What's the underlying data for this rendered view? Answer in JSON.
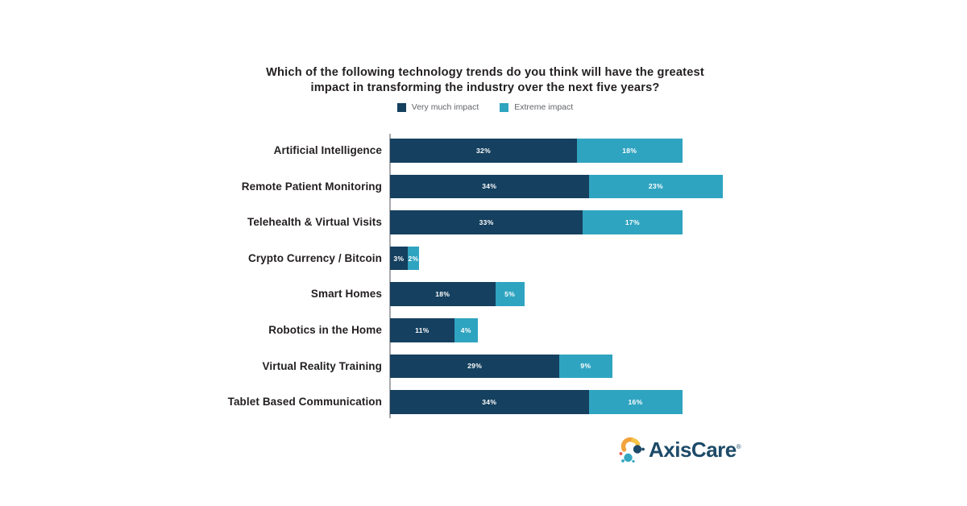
{
  "title": {
    "line1": "Which of the following technology trends do you think will have the greatest",
    "line2": "impact in transforming the industry over the next five years?"
  },
  "logo": {
    "text": "AxisCare",
    "registered_mark": "®",
    "color": "#1d4a68",
    "icon": "axiscare-dot-swirl-icon",
    "icon_colors": [
      "#f2a33c",
      "#f6c445",
      "#1d4a68",
      "#35a7c1",
      "#e2574c"
    ]
  },
  "colors": {
    "series_very_much": "#15405f",
    "series_extreme": "#2fa4c0",
    "title_text": "#231f20",
    "legend_text": "#63656a",
    "axis_line": "#a7a9ac",
    "bar_value_text": "#ffffff"
  },
  "chart_data": {
    "type": "bar",
    "orientation": "horizontal",
    "stacked": true,
    "title": "Which of the following technology trends do you think will have the greatest impact in transforming the industry over the next five years?",
    "categories": [
      "Artificial Intelligence",
      "Remote Patient Monitoring",
      "Telehealth & Virtual Visits",
      "Crypto Currency / Bitcoin",
      "Smart Homes",
      "Robotics in the Home",
      "Virtual Reality Training",
      "Tablet Based Communication"
    ],
    "series": [
      {
        "name": "Very much impact",
        "color": "#15405f",
        "values": [
          32,
          34,
          33,
          3,
          18,
          11,
          29,
          34
        ]
      },
      {
        "name": "Extreme impact",
        "color": "#2fa4c0",
        "values": [
          18,
          23,
          17,
          2,
          5,
          4,
          9,
          16
        ]
      }
    ],
    "value_suffix": "%",
    "xlabel": "",
    "ylabel": "",
    "xlim": [
      0,
      57
    ],
    "grid": false,
    "legend_position": "top"
  }
}
